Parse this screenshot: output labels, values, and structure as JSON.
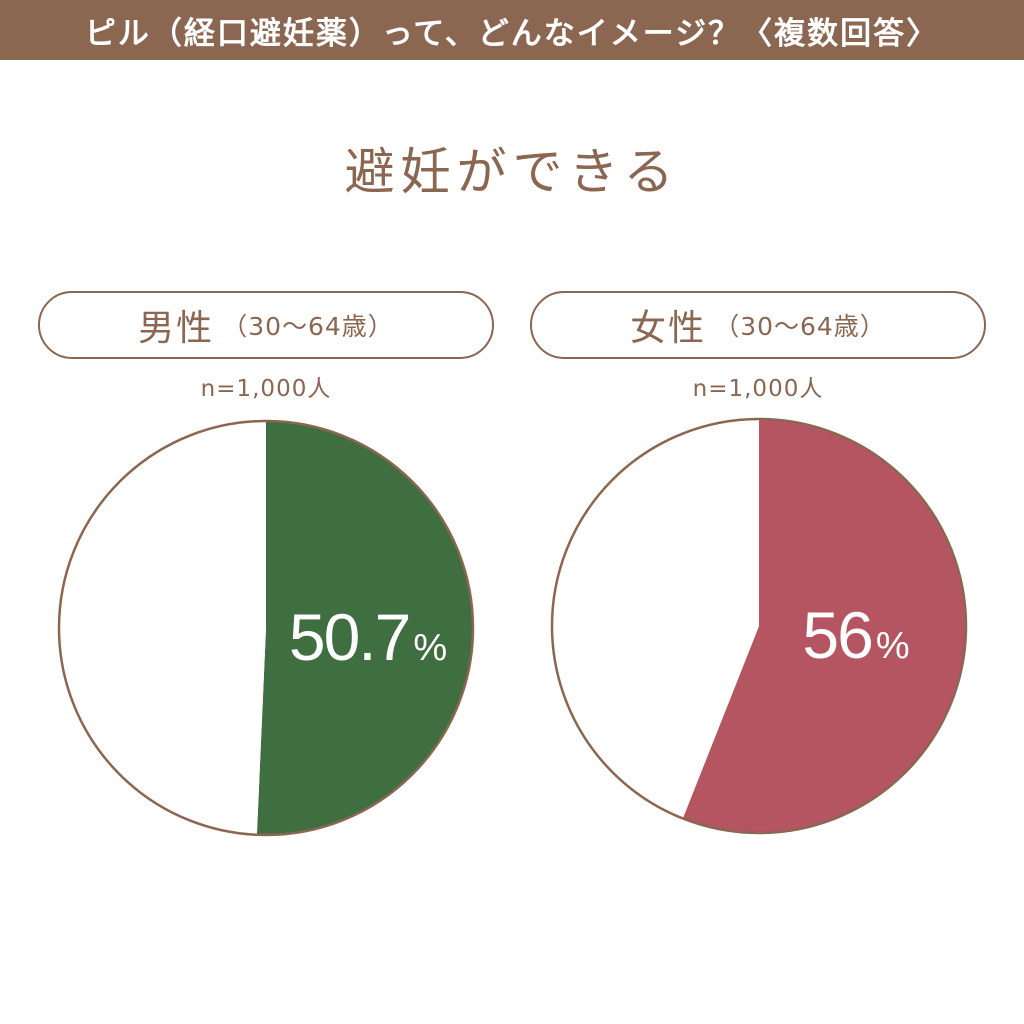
{
  "header": {
    "title": "ピル（経口避妊薬）って、どんなイメージ？〈複数回答〉"
  },
  "subtitle": "避妊ができる",
  "colors": {
    "brown": "#8b6651",
    "male": "#3f6e40",
    "female": "#b55562",
    "white": "#ffffff"
  },
  "panels": [
    {
      "gender": "男性",
      "age_range": "（30〜64歳）",
      "sample": "n=1,000人"
    },
    {
      "gender": "女性",
      "age_range": "（30〜64歳）",
      "sample": "n=1,000人"
    }
  ],
  "chart_data": [
    {
      "type": "pie",
      "title": "男性（30〜64歳）",
      "slices": [
        {
          "label": "",
          "value": 50.7,
          "color": "#3f6e40"
        },
        {
          "label": "",
          "value": 49.3,
          "color": "#ffffff"
        }
      ],
      "value_label": "50.7",
      "unit": "%"
    },
    {
      "type": "pie",
      "title": "女性（30〜64歳）",
      "slices": [
        {
          "label": "",
          "value": 56,
          "color": "#b55562"
        },
        {
          "label": "",
          "value": 44,
          "color": "#ffffff"
        }
      ],
      "value_label": "56",
      "unit": "%"
    }
  ]
}
